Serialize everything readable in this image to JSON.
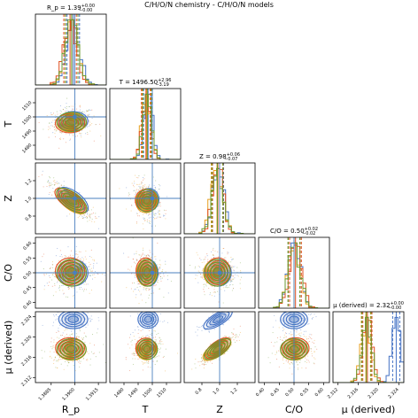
{
  "figure": {
    "suptitle": "C/H/O/N chemistry - C/H/O/N models"
  },
  "colors": {
    "model_a": "#4472c4",
    "model_b": "#e8a020",
    "model_c": "#e05020",
    "model_d": "#6a9a30",
    "truth": "#4a7fbf"
  },
  "chart_data": {
    "type": "scatter",
    "subtype": "corner-plot",
    "parameters": [
      {
        "label": "R_p",
        "name_display": "R_p",
        "range": [
          1.3875,
          1.392
        ],
        "ticks": [
          1.3885,
          1.39,
          1.3915
        ],
        "tick_labels": [
          "1.3885",
          "1.3900",
          "1.3915"
        ],
        "truth": 1.39,
        "title": "R_p = 1.39",
        "sup": "+0.00",
        "sub": "−0.00"
      },
      {
        "label": "T",
        "name_display": "T",
        "range": [
          1470,
          1520
        ],
        "ticks": [
          1480,
          1490,
          1500,
          1510
        ],
        "tick_labels": [
          "1480",
          "1490",
          "1500",
          "1510"
        ],
        "truth": 1500,
        "title": "T = 1496.50",
        "sup": "+2.96",
        "sub": "−3.19"
      },
      {
        "label": "Z",
        "name_display": "Z",
        "range": [
          0.6,
          1.4
        ],
        "ticks": [
          0.8,
          1.0,
          1.2
        ],
        "tick_labels": [
          "0.8",
          "1.0",
          "1.2"
        ],
        "truth": 1.0,
        "title": "Z = 0.98",
        "sup": "+0.06",
        "sub": "−0.07"
      },
      {
        "label": "C/O",
        "name_display": "C/O",
        "range": [
          0.38,
          0.62
        ],
        "ticks": [
          0.4,
          0.45,
          0.5,
          0.55,
          0.6
        ],
        "tick_labels": [
          "0.40",
          "0.45",
          "0.50",
          "0.55",
          "0.60"
        ],
        "truth": 0.5,
        "title": "C/O = 0.50",
        "sup": "+0.02",
        "sub": "−0.02"
      },
      {
        "label": "μ (derived)",
        "name_display": "μ (derived)",
        "range": [
          2.311,
          2.325
        ],
        "ticks": [
          2.312,
          2.316,
          2.32,
          2.324
        ],
        "tick_labels": [
          "2.312",
          "2.316",
          "2.320",
          "2.324"
        ],
        "truth": null,
        "title": "μ (derived) = 2.32",
        "sup": "+0.00",
        "sub": "−0.00"
      }
    ],
    "series": [
      {
        "color": "#4472c4",
        "means": [
          1.3899,
          1497.0,
          0.98,
          0.5,
          2.3235
        ],
        "sigmas": [
          0.0004,
          3.0,
          0.065,
          0.02,
          0.0008
        ],
        "quantiles": [
          [
            1.3895,
            1.3899,
            1.3903
          ],
          [
            1493.8,
            1497.0,
            1500.0
          ],
          [
            0.915,
            0.98,
            1.045
          ],
          [
            0.48,
            0.5,
            0.52
          ],
          [
            2.3228,
            2.3235,
            2.3242
          ]
        ]
      },
      {
        "color": "#e8a020",
        "means": [
          1.3898,
          1496.0,
          0.97,
          0.5,
          2.3175
        ],
        "sigmas": [
          0.0004,
          3.0,
          0.065,
          0.02,
          0.0009
        ],
        "quantiles": [
          [
            1.3894,
            1.3898,
            1.3902
          ],
          [
            1492.8,
            1496.0,
            1499.0
          ],
          [
            0.905,
            0.97,
            1.035
          ],
          [
            0.48,
            0.5,
            0.52
          ],
          [
            2.3166,
            2.3175,
            2.3184
          ]
        ]
      },
      {
        "color": "#e05020",
        "means": [
          1.3897,
          1495.5,
          0.98,
          0.505,
          2.3178
        ],
        "sigmas": [
          0.0004,
          3.0,
          0.06,
          0.02,
          0.0009
        ],
        "quantiles": [
          [
            1.3893,
            1.3897,
            1.3901
          ],
          [
            1492.3,
            1495.5,
            1498.5
          ],
          [
            0.92,
            0.98,
            1.04
          ],
          [
            0.485,
            0.505,
            0.525
          ],
          [
            2.3169,
            2.3178,
            2.3187
          ]
        ]
      },
      {
        "color": "#6a9a30",
        "means": [
          1.3898,
          1496.5,
          0.975,
          0.5,
          2.3176
        ],
        "sigmas": [
          0.0004,
          3.0,
          0.062,
          0.02,
          0.0009
        ],
        "quantiles": [
          [
            1.3894,
            1.3898,
            1.3902
          ],
          [
            1493.3,
            1496.5,
            1499.5
          ],
          [
            0.913,
            0.975,
            1.037
          ],
          [
            0.48,
            0.5,
            0.52
          ],
          [
            2.3167,
            2.3176,
            2.3185
          ]
        ]
      }
    ],
    "correlations": {
      "0-2": -0.85,
      "1-2": -0.3,
      "2-4": 0.85,
      "0-4": 0.0,
      "1-4": 0.1,
      "3-4": 0.0
    },
    "grid": false,
    "legend": "none"
  }
}
